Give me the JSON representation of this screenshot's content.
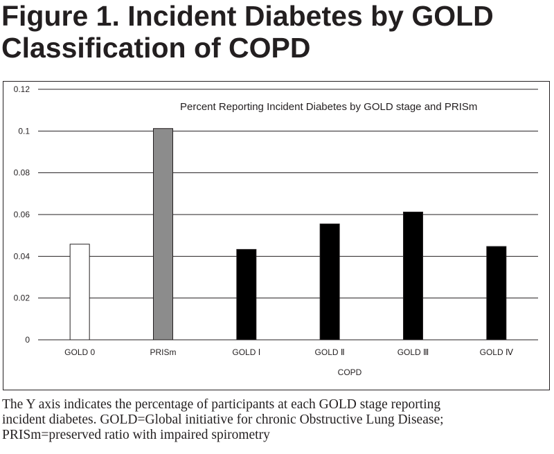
{
  "figure": {
    "title_line1": "Figure 1. Incident Diabetes by GOLD",
    "title_line2": "Classification of COPD"
  },
  "chart_data": {
    "type": "bar",
    "title": "Percent Reporting Incident Diabetes by GOLD stage and PRISm",
    "xlabel": "COPD",
    "ylabel": "",
    "categories": [
      "GOLD 0",
      "PRISm",
      "GOLD Ⅰ",
      "GOLD Ⅱ",
      "GOLD Ⅲ",
      "GOLD Ⅳ"
    ],
    "values": [
      0.0458,
      0.1012,
      0.0433,
      0.0555,
      0.0612,
      0.0447
    ],
    "bar_colors": [
      "#ffffff",
      "#8c8c8c",
      "#000000",
      "#000000",
      "#000000",
      "#000000"
    ],
    "ylim": [
      0,
      0.12
    ],
    "yticks": [
      0,
      0.02,
      0.04,
      0.06,
      0.08,
      0.1,
      0.12
    ],
    "ytick_labels": [
      "0",
      "0.02",
      "0.04",
      "0.06",
      "0.08",
      "0.1",
      "0.12"
    ],
    "grid": true,
    "legend": false
  },
  "caption": {
    "line1": "The Y axis indicates the percentage of participants at each GOLD stage reporting",
    "line2": "incident diabetes. GOLD=Global initiative for chronic Obstructive Lung Disease;",
    "line3": "PRISm=preserved ratio with impaired spirometry"
  }
}
